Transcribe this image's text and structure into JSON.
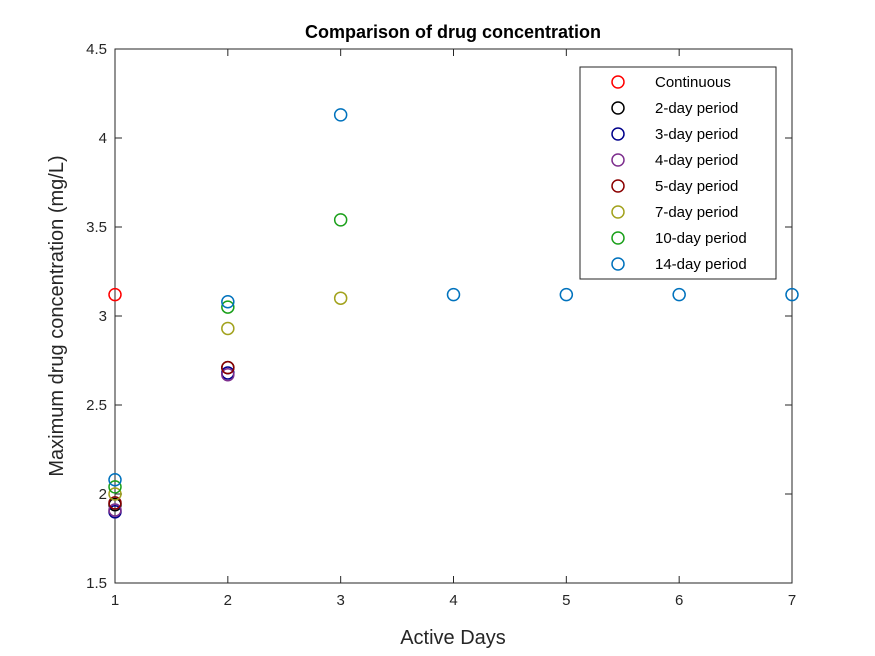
{
  "chart_data": {
    "type": "scatter",
    "title": "Comparison of drug concentration",
    "xlabel": "Active Days",
    "ylabel": "Maximum drug concentration (mg/L)",
    "xlim": [
      1,
      7
    ],
    "ylim": [
      1.5,
      4.5
    ],
    "xticks": [
      "1",
      "2",
      "3",
      "4",
      "5",
      "6",
      "7"
    ],
    "yticks": [
      "1.5",
      "2",
      "2.5",
      "3",
      "3.5",
      "4",
      "4.5"
    ],
    "grid": false,
    "legend_position": "top-right",
    "marker": "circle-open",
    "series": [
      {
        "name": "Continuous",
        "color": "#ff0000",
        "points": [
          [
            1,
            3.12
          ]
        ]
      },
      {
        "name": "2-day period",
        "color": "#000000",
        "points": [
          [
            1,
            1.94
          ],
          [
            2,
            2.71
          ]
        ]
      },
      {
        "name": "3-day period",
        "color": "#00008b",
        "points": [
          [
            1,
            1.9
          ],
          [
            2,
            2.68
          ]
        ]
      },
      {
        "name": "4-day period",
        "color": "#7e2f8e",
        "points": [
          [
            1,
            1.91
          ],
          [
            2,
            2.67
          ]
        ]
      },
      {
        "name": "5-day period",
        "color": "#8b0000",
        "points": [
          [
            1,
            1.95
          ],
          [
            2,
            2.71
          ]
        ]
      },
      {
        "name": "7-day period",
        "color": "#a2a21d",
        "points": [
          [
            1,
            2.0
          ],
          [
            2,
            2.93
          ],
          [
            3,
            3.1
          ]
        ]
      },
      {
        "name": "10-day period",
        "color": "#1ba01b",
        "points": [
          [
            1,
            2.04
          ],
          [
            2,
            3.05
          ],
          [
            3,
            3.54
          ]
        ]
      },
      {
        "name": "14-day period",
        "color": "#0072bd",
        "points": [
          [
            1,
            2.08
          ],
          [
            2,
            3.08
          ],
          [
            3,
            4.13
          ],
          [
            4,
            3.12
          ],
          [
            5,
            3.12
          ],
          [
            6,
            3.12
          ],
          [
            7,
            3.12
          ]
        ]
      }
    ]
  }
}
